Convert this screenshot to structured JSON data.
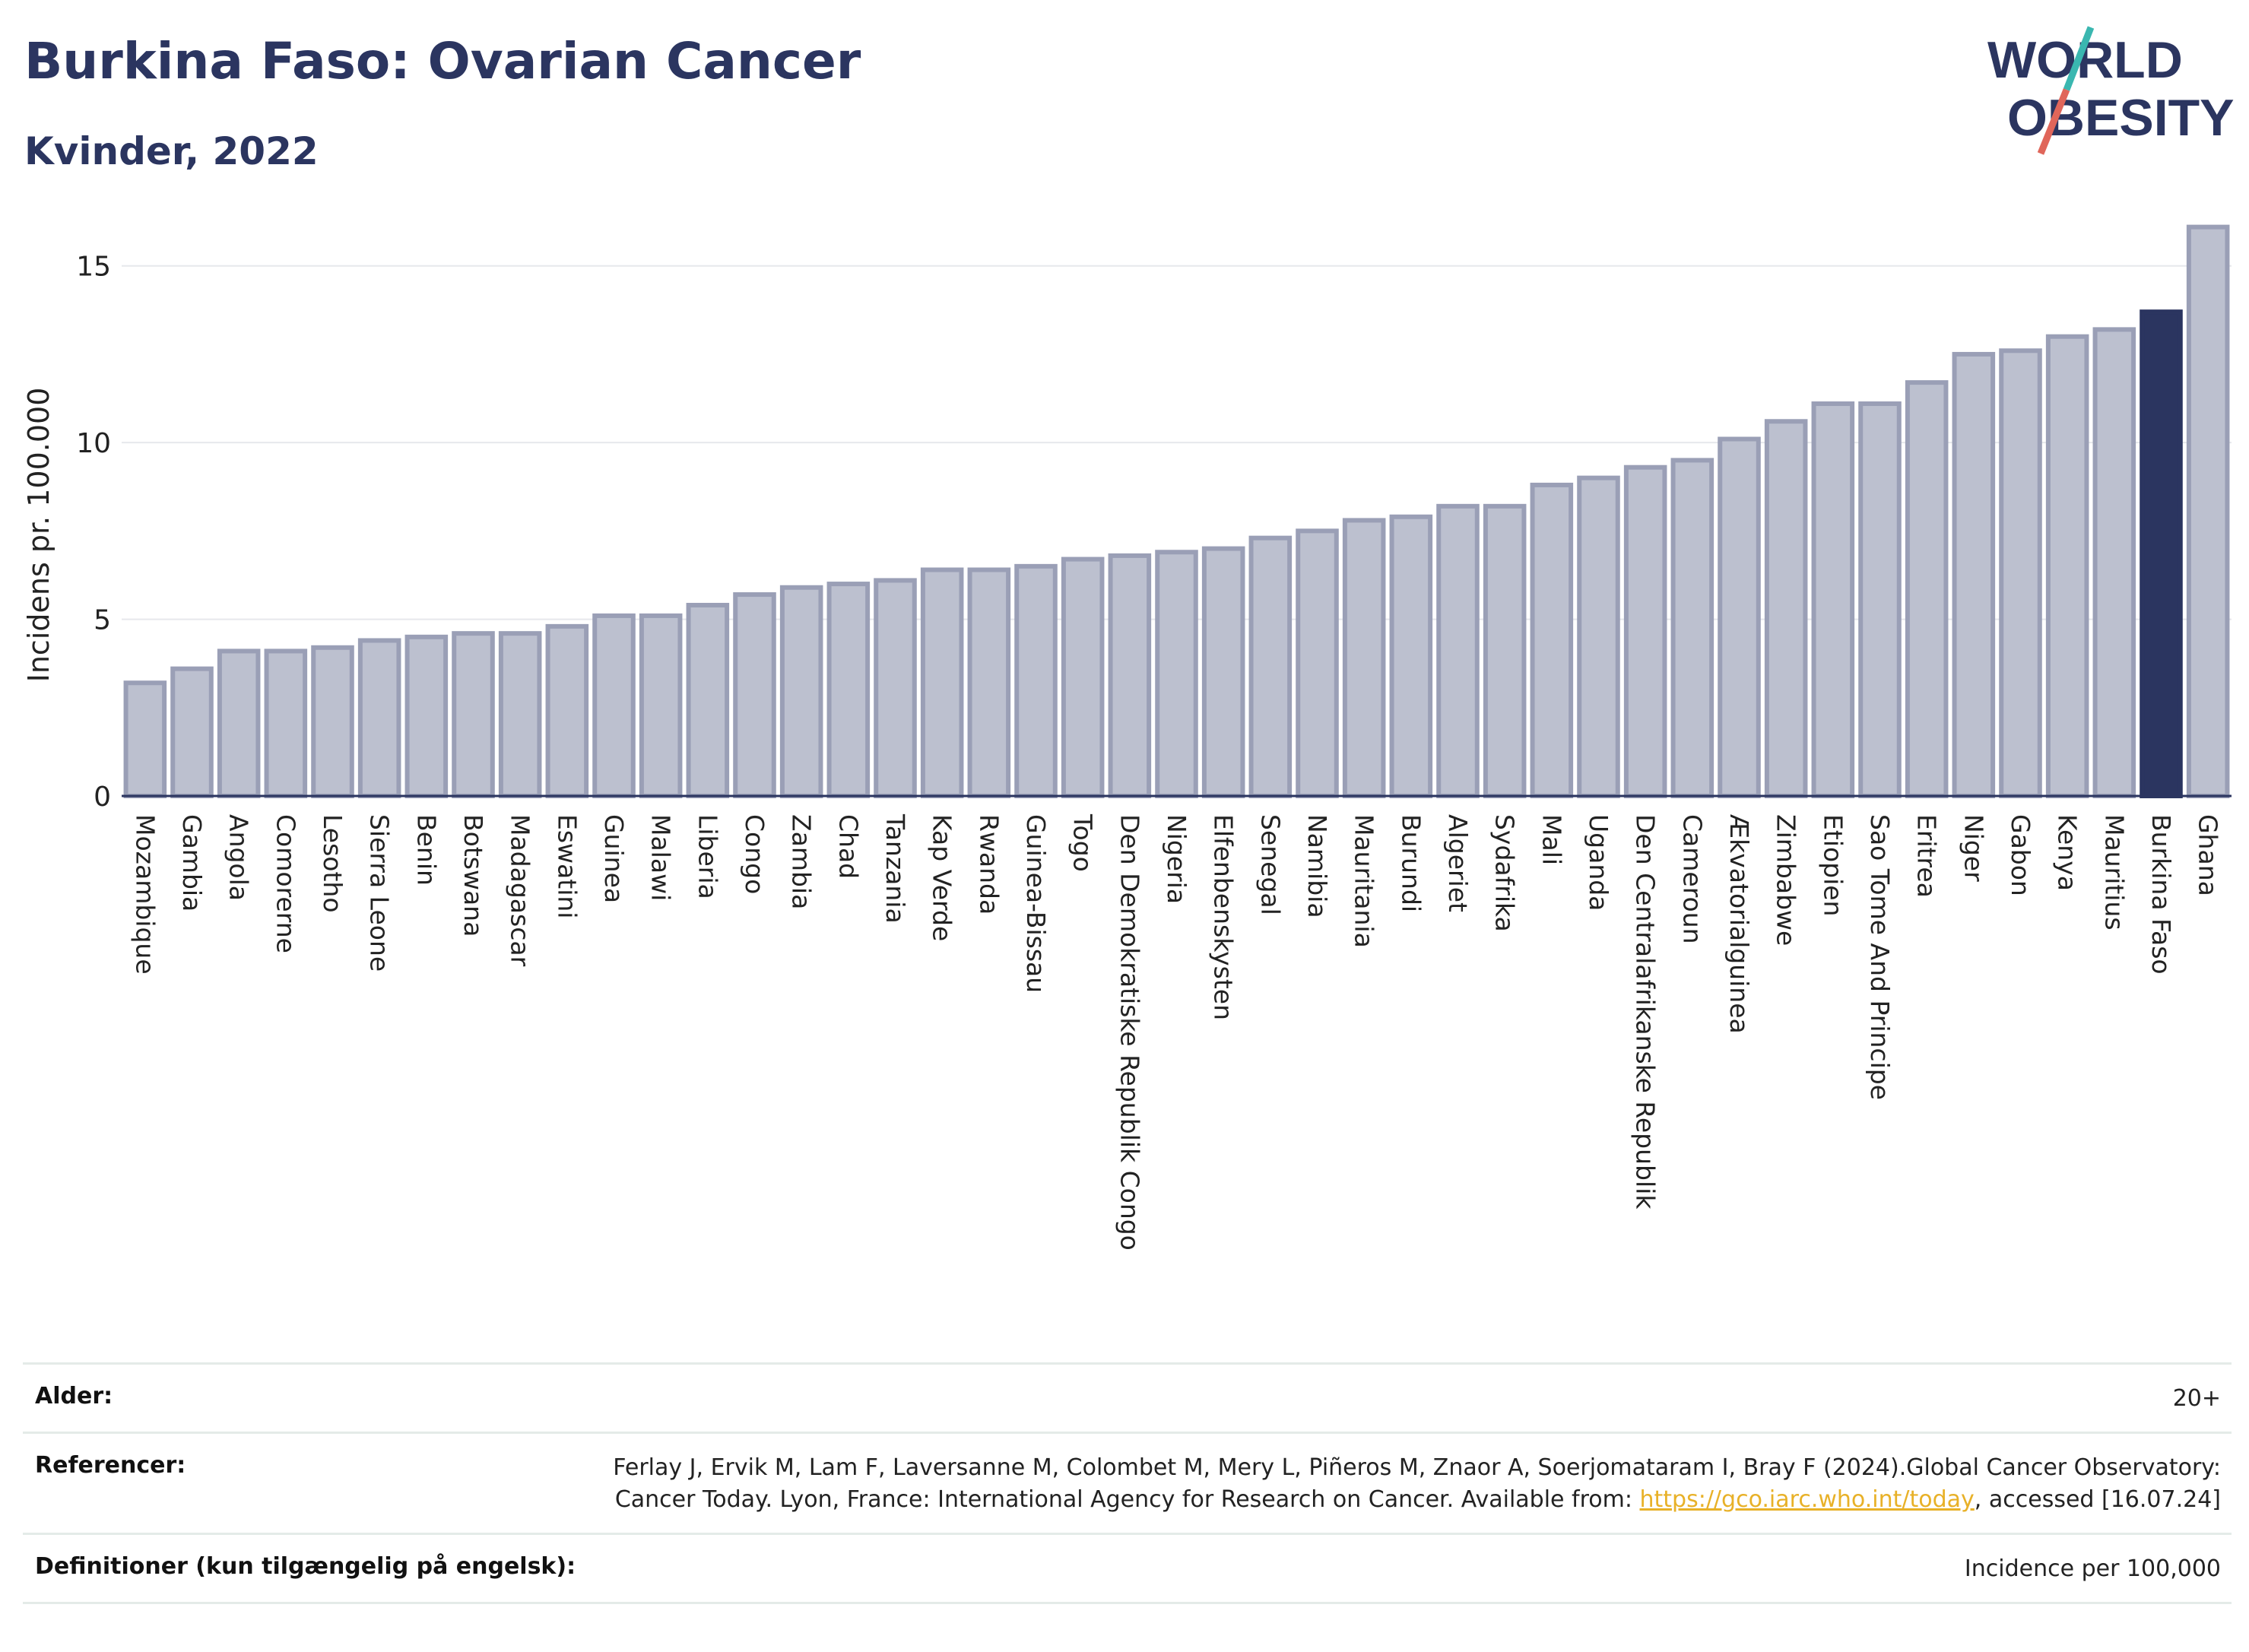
{
  "header": {
    "title": "Burkina Faso: Ovarian Cancer",
    "subtitle": "Kvinder, 2022"
  },
  "logo": {
    "line1": "WORLD",
    "line2": "OBESITY",
    "colors": {
      "text": "#2b3560",
      "slash_teal": "#3ab7b0",
      "slash_red": "#e0665a"
    }
  },
  "colors": {
    "bar": "#bcc0cf",
    "bar_stroke": "#9a9fb6",
    "highlight": "#2b3560",
    "grid": "#e6e8ec"
  },
  "chart_data": {
    "type": "bar",
    "ylabel": "Incidens pr. 100.000",
    "xlabel": "",
    "ylim": [
      0,
      16.5
    ],
    "yticks": [
      0,
      5,
      10,
      15
    ],
    "grid": true,
    "highlight": "Burkina Faso",
    "categories": [
      "Mozambique",
      "Gambia",
      "Angola",
      "Comorerne",
      "Lesotho",
      "Sierra Leone",
      "Benin",
      "Botswana",
      "Madagascar",
      "Eswatini",
      "Guinea",
      "Malawi",
      "Liberia",
      "Congo",
      "Zambia",
      "Chad",
      "Tanzania",
      "Kap Verde",
      "Rwanda",
      "Guinea-Bissau",
      "Togo",
      "Den Demokratiske Republik Congo",
      "Nigeria",
      "Elfenbenskysten",
      "Senegal",
      "Namibia",
      "Mauritania",
      "Burundi",
      "Algeriet",
      "Sydafrika",
      "Mali",
      "Uganda",
      "Den Centralafrikanske Republik",
      "Cameroun",
      "Ækvatorialguinea",
      "Zimbabwe",
      "Etiopien",
      "Sao Tome And Principe",
      "Eritrea",
      "Niger",
      "Gabon",
      "Kenya",
      "Mauritius",
      "Burkina Faso",
      "Ghana"
    ],
    "values": [
      3.2,
      3.6,
      4.1,
      4.1,
      4.2,
      4.4,
      4.5,
      4.6,
      4.6,
      4.8,
      5.1,
      5.1,
      5.4,
      5.7,
      5.9,
      6.0,
      6.1,
      6.4,
      6.4,
      6.5,
      6.7,
      6.8,
      6.9,
      7.0,
      7.3,
      7.5,
      7.8,
      7.9,
      8.2,
      8.2,
      8.8,
      9.0,
      9.3,
      9.5,
      10.1,
      10.6,
      11.1,
      11.1,
      11.7,
      12.5,
      12.6,
      13.0,
      13.2,
      13.7,
      16.1
    ]
  },
  "footer": {
    "age_label": "Alder:",
    "age_value": "20+",
    "ref_label": "Referencer:",
    "ref_text_1": "Ferlay J, Ervik M, Lam F, Laversanne M, Colombet M, Mery L, Piñeros M, Znaor A, Soerjomataram I, Bray F (2024).Global Cancer Observatory: Cancer Today. Lyon, France: International Agency for Research on Cancer. Available from: ",
    "ref_link": "https://gco.iarc.who.int/today",
    "ref_text_2": ", accessed [16.07.24]",
    "def_label": "Definitioner (kun tilgængelig på engelsk):",
    "def_value": "Incidence per 100,000"
  }
}
